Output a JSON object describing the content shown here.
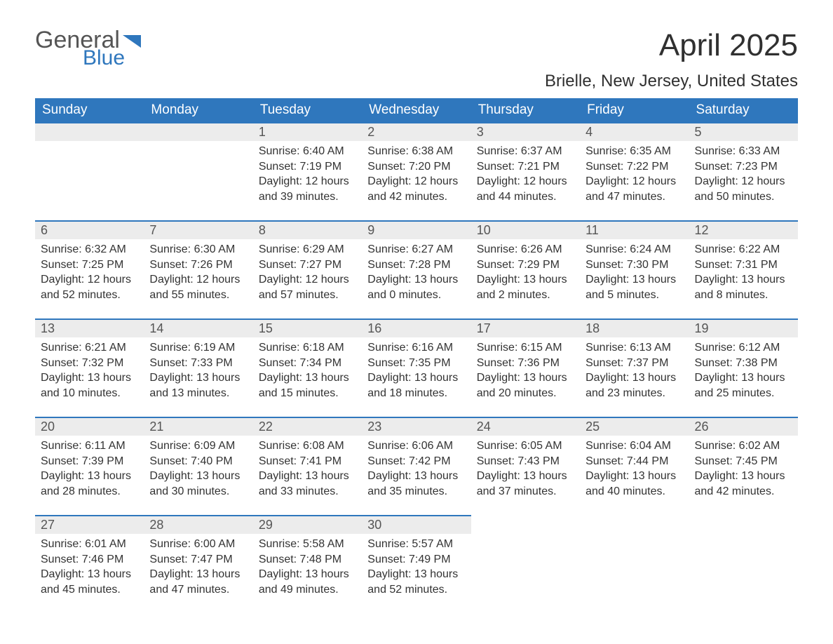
{
  "logo": {
    "general": "General",
    "blue": "Blue",
    "flag_color": "#2f77bd"
  },
  "title": "April 2025",
  "location": "Brielle, New Jersey, United States",
  "colors": {
    "header_bg": "#2f77bd",
    "header_text": "#ffffff",
    "daynum_bg": "#ececec",
    "daynum_border": "#2f77bd",
    "body_text": "#333333",
    "page_bg": "#ffffff"
  },
  "weekdays": [
    "Sunday",
    "Monday",
    "Tuesday",
    "Wednesday",
    "Thursday",
    "Friday",
    "Saturday"
  ],
  "first_weekday_index": 2,
  "days": [
    {
      "n": 1,
      "sunrise": "6:40 AM",
      "sunset": "7:19 PM",
      "daylight": "12 hours and 39 minutes."
    },
    {
      "n": 2,
      "sunrise": "6:38 AM",
      "sunset": "7:20 PM",
      "daylight": "12 hours and 42 minutes."
    },
    {
      "n": 3,
      "sunrise": "6:37 AM",
      "sunset": "7:21 PM",
      "daylight": "12 hours and 44 minutes."
    },
    {
      "n": 4,
      "sunrise": "6:35 AM",
      "sunset": "7:22 PM",
      "daylight": "12 hours and 47 minutes."
    },
    {
      "n": 5,
      "sunrise": "6:33 AM",
      "sunset": "7:23 PM",
      "daylight": "12 hours and 50 minutes."
    },
    {
      "n": 6,
      "sunrise": "6:32 AM",
      "sunset": "7:25 PM",
      "daylight": "12 hours and 52 minutes."
    },
    {
      "n": 7,
      "sunrise": "6:30 AM",
      "sunset": "7:26 PM",
      "daylight": "12 hours and 55 minutes."
    },
    {
      "n": 8,
      "sunrise": "6:29 AM",
      "sunset": "7:27 PM",
      "daylight": "12 hours and 57 minutes."
    },
    {
      "n": 9,
      "sunrise": "6:27 AM",
      "sunset": "7:28 PM",
      "daylight": "13 hours and 0 minutes."
    },
    {
      "n": 10,
      "sunrise": "6:26 AM",
      "sunset": "7:29 PM",
      "daylight": "13 hours and 2 minutes."
    },
    {
      "n": 11,
      "sunrise": "6:24 AM",
      "sunset": "7:30 PM",
      "daylight": "13 hours and 5 minutes."
    },
    {
      "n": 12,
      "sunrise": "6:22 AM",
      "sunset": "7:31 PM",
      "daylight": "13 hours and 8 minutes."
    },
    {
      "n": 13,
      "sunrise": "6:21 AM",
      "sunset": "7:32 PM",
      "daylight": "13 hours and 10 minutes."
    },
    {
      "n": 14,
      "sunrise": "6:19 AM",
      "sunset": "7:33 PM",
      "daylight": "13 hours and 13 minutes."
    },
    {
      "n": 15,
      "sunrise": "6:18 AM",
      "sunset": "7:34 PM",
      "daylight": "13 hours and 15 minutes."
    },
    {
      "n": 16,
      "sunrise": "6:16 AM",
      "sunset": "7:35 PM",
      "daylight": "13 hours and 18 minutes."
    },
    {
      "n": 17,
      "sunrise": "6:15 AM",
      "sunset": "7:36 PM",
      "daylight": "13 hours and 20 minutes."
    },
    {
      "n": 18,
      "sunrise": "6:13 AM",
      "sunset": "7:37 PM",
      "daylight": "13 hours and 23 minutes."
    },
    {
      "n": 19,
      "sunrise": "6:12 AM",
      "sunset": "7:38 PM",
      "daylight": "13 hours and 25 minutes."
    },
    {
      "n": 20,
      "sunrise": "6:11 AM",
      "sunset": "7:39 PM",
      "daylight": "13 hours and 28 minutes."
    },
    {
      "n": 21,
      "sunrise": "6:09 AM",
      "sunset": "7:40 PM",
      "daylight": "13 hours and 30 minutes."
    },
    {
      "n": 22,
      "sunrise": "6:08 AM",
      "sunset": "7:41 PM",
      "daylight": "13 hours and 33 minutes."
    },
    {
      "n": 23,
      "sunrise": "6:06 AM",
      "sunset": "7:42 PM",
      "daylight": "13 hours and 35 minutes."
    },
    {
      "n": 24,
      "sunrise": "6:05 AM",
      "sunset": "7:43 PM",
      "daylight": "13 hours and 37 minutes."
    },
    {
      "n": 25,
      "sunrise": "6:04 AM",
      "sunset": "7:44 PM",
      "daylight": "13 hours and 40 minutes."
    },
    {
      "n": 26,
      "sunrise": "6:02 AM",
      "sunset": "7:45 PM",
      "daylight": "13 hours and 42 minutes."
    },
    {
      "n": 27,
      "sunrise": "6:01 AM",
      "sunset": "7:46 PM",
      "daylight": "13 hours and 45 minutes."
    },
    {
      "n": 28,
      "sunrise": "6:00 AM",
      "sunset": "7:47 PM",
      "daylight": "13 hours and 47 minutes."
    },
    {
      "n": 29,
      "sunrise": "5:58 AM",
      "sunset": "7:48 PM",
      "daylight": "13 hours and 49 minutes."
    },
    {
      "n": 30,
      "sunrise": "5:57 AM",
      "sunset": "7:49 PM",
      "daylight": "13 hours and 52 minutes."
    }
  ],
  "labels": {
    "sunrise": "Sunrise: ",
    "sunset": "Sunset: ",
    "daylight": "Daylight: "
  }
}
